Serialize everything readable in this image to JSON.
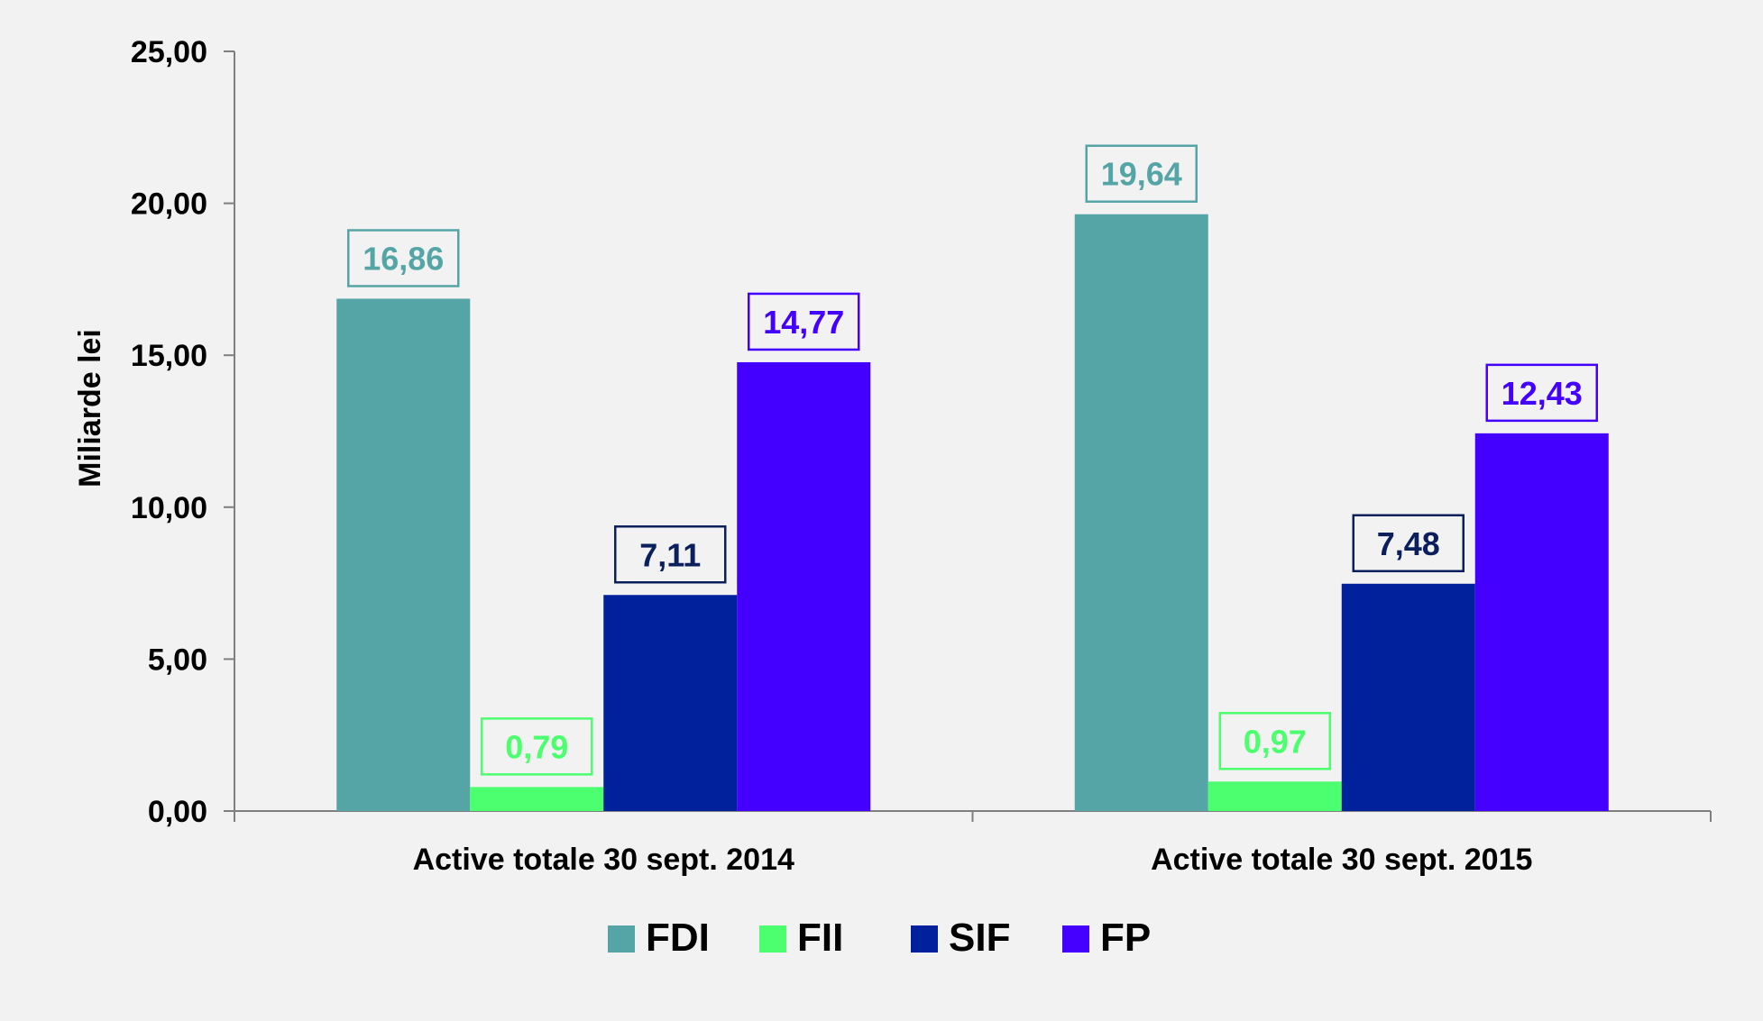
{
  "chart_data": {
    "type": "bar",
    "ylabel": "Miliarde lei",
    "ylim": [
      0,
      25
    ],
    "yticks": [
      "0,00",
      "5,00",
      "10,00",
      "15,00",
      "20,00",
      "25,00"
    ],
    "categories": [
      "Active totale 30 sept. 2014",
      "Active totale 30 sept. 2015"
    ],
    "series": [
      {
        "name": "FDI",
        "color": "#56a5a6",
        "label_color": "#56a5a6",
        "values": [
          16.86,
          19.64
        ],
        "labels": [
          "16,86",
          "19,64"
        ]
      },
      {
        "name": "FII",
        "color": "#4cff6e",
        "label_color": "#4cff6e",
        "values": [
          0.79,
          0.97
        ],
        "labels": [
          "0,79",
          "0,97"
        ]
      },
      {
        "name": "SIF",
        "color": "#00209c",
        "label_color": "#0a1f5c",
        "values": [
          7.11,
          7.48
        ],
        "labels": [
          "7,11",
          "7,48"
        ]
      },
      {
        "name": "FP",
        "color": "#4400ff",
        "label_color": "#4400ff",
        "values": [
          14.77,
          12.43
        ],
        "labels": [
          "14,77",
          "12,43"
        ]
      }
    ],
    "grid": false,
    "legend_position": "bottom"
  }
}
